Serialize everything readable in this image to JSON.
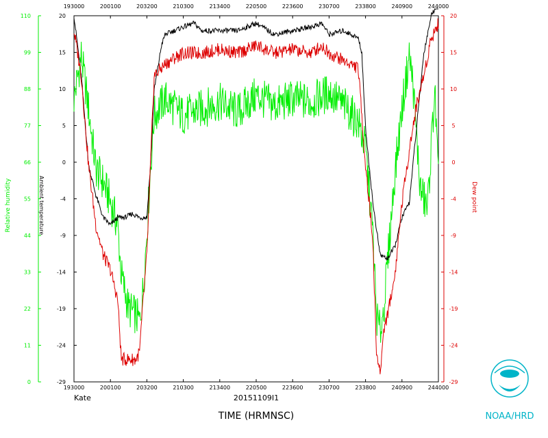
{
  "chart_data": {
    "type": "line",
    "x_ticks": [
      "193000",
      "200100",
      "203200",
      "210300",
      "213400",
      "220500",
      "223600",
      "230700",
      "233800",
      "240900",
      "244000"
    ],
    "left_axis_ticks": [
      "0",
      "11",
      "22",
      "33",
      "44",
      "55",
      "66",
      "77",
      "88",
      "99",
      "110"
    ],
    "mid_axis_ticks": [
      "-29",
      "-24",
      "-19",
      "-14",
      "-9",
      "-4",
      "0",
      "5",
      "10",
      "15",
      "20"
    ],
    "right_axis_ticks": [
      "-29",
      "-24",
      "-19",
      "-14",
      "-9",
      "-4",
      "0",
      "5",
      "10",
      "15",
      "20"
    ],
    "left_axis_label": "Relative humidity",
    "mid_axis_label": "Ambient temperature",
    "right_axis_label": "Dew point",
    "xlabel": "TIME (HRMNSC)",
    "storm": "Kate",
    "flight_id": "20151109I1",
    "logo_text": "NOAA/HRD",
    "ylim_temp": [
      -29,
      20
    ],
    "ylim_rh": [
      0,
      110
    ],
    "series": [
      {
        "name": "Relative humidity",
        "color": "#00ee00",
        "axis": "rh",
        "points": [
          [
            0,
            85
          ],
          [
            0.02,
            98
          ],
          [
            0.04,
            82
          ],
          [
            0.06,
            64
          ],
          [
            0.08,
            60
          ],
          [
            0.1,
            54
          ],
          [
            0.12,
            47
          ],
          [
            0.13,
            32
          ],
          [
            0.15,
            22
          ],
          [
            0.17,
            20
          ],
          [
            0.18,
            18
          ],
          [
            0.19,
            28
          ],
          [
            0.2,
            45
          ],
          [
            0.21,
            64
          ],
          [
            0.22,
            80
          ],
          [
            0.25,
            85
          ],
          [
            0.3,
            80
          ],
          [
            0.35,
            82
          ],
          [
            0.4,
            84
          ],
          [
            0.45,
            81
          ],
          [
            0.5,
            86
          ],
          [
            0.55,
            83
          ],
          [
            0.6,
            85
          ],
          [
            0.65,
            84
          ],
          [
            0.7,
            87
          ],
          [
            0.75,
            82
          ],
          [
            0.78,
            78
          ],
          [
            0.8,
            70
          ],
          [
            0.82,
            45
          ],
          [
            0.83,
            20
          ],
          [
            0.84,
            15
          ],
          [
            0.85,
            22
          ],
          [
            0.86,
            35
          ],
          [
            0.88,
            62
          ],
          [
            0.9,
            82
          ],
          [
            0.92,
            98
          ],
          [
            0.93,
            90
          ],
          [
            0.95,
            58
          ],
          [
            0.97,
            52
          ],
          [
            0.99,
            88
          ],
          [
            1.0,
            60
          ]
        ]
      },
      {
        "name": "Ambient temperature",
        "color": "#000000",
        "axis": "temp",
        "points": [
          [
            0,
            20
          ],
          [
            0.02,
            12
          ],
          [
            0.04,
            0
          ],
          [
            0.06,
            -4
          ],
          [
            0.08,
            -7
          ],
          [
            0.1,
            -8
          ],
          [
            0.12,
            -7
          ],
          [
            0.14,
            -7
          ],
          [
            0.16,
            -6.5
          ],
          [
            0.18,
            -7
          ],
          [
            0.2,
            -7
          ],
          [
            0.21,
            0
          ],
          [
            0.22,
            10
          ],
          [
            0.24,
            16
          ],
          [
            0.25,
            17.5
          ],
          [
            0.3,
            18.5
          ],
          [
            0.33,
            19
          ],
          [
            0.35,
            18
          ],
          [
            0.4,
            18
          ],
          [
            0.45,
            18
          ],
          [
            0.5,
            19
          ],
          [
            0.55,
            17.5
          ],
          [
            0.6,
            18
          ],
          [
            0.65,
            18.5
          ],
          [
            0.68,
            19
          ],
          [
            0.7,
            17.5
          ],
          [
            0.74,
            18
          ],
          [
            0.78,
            17
          ],
          [
            0.79,
            15
          ],
          [
            0.8,
            5
          ],
          [
            0.82,
            -5
          ],
          [
            0.84,
            -12
          ],
          [
            0.86,
            -12.5
          ],
          [
            0.88,
            -11
          ],
          [
            0.9,
            -7
          ],
          [
            0.92,
            -5
          ],
          [
            0.94,
            5
          ],
          [
            0.96,
            15
          ],
          [
            0.98,
            20
          ],
          [
            1.0,
            22
          ]
        ]
      },
      {
        "name": "Dew point",
        "color": "#dd0000",
        "axis": "temp",
        "points": [
          [
            0,
            18
          ],
          [
            0.02,
            12
          ],
          [
            0.04,
            0
          ],
          [
            0.06,
            -8
          ],
          [
            0.08,
            -12
          ],
          [
            0.1,
            -14
          ],
          [
            0.12,
            -18
          ],
          [
            0.13,
            -26
          ],
          [
            0.15,
            -26
          ],
          [
            0.17,
            -26
          ],
          [
            0.18,
            -25
          ],
          [
            0.19,
            -18
          ],
          [
            0.2,
            -12
          ],
          [
            0.21,
            0
          ],
          [
            0.22,
            12
          ],
          [
            0.25,
            13.5
          ],
          [
            0.28,
            14.5
          ],
          [
            0.3,
            15
          ],
          [
            0.35,
            15
          ],
          [
            0.4,
            15.5
          ],
          [
            0.45,
            15
          ],
          [
            0.5,
            16
          ],
          [
            0.55,
            15
          ],
          [
            0.6,
            15.5
          ],
          [
            0.65,
            15
          ],
          [
            0.68,
            16
          ],
          [
            0.7,
            15
          ],
          [
            0.74,
            14
          ],
          [
            0.78,
            13
          ],
          [
            0.8,
            0
          ],
          [
            0.82,
            -10
          ],
          [
            0.83,
            -25
          ],
          [
            0.84,
            -28
          ],
          [
            0.85,
            -22
          ],
          [
            0.86,
            -20
          ],
          [
            0.88,
            -15
          ],
          [
            0.9,
            -5
          ],
          [
            0.92,
            2
          ],
          [
            0.94,
            8
          ],
          [
            0.96,
            12
          ],
          [
            0.98,
            17
          ],
          [
            1.0,
            19
          ]
        ]
      }
    ]
  }
}
